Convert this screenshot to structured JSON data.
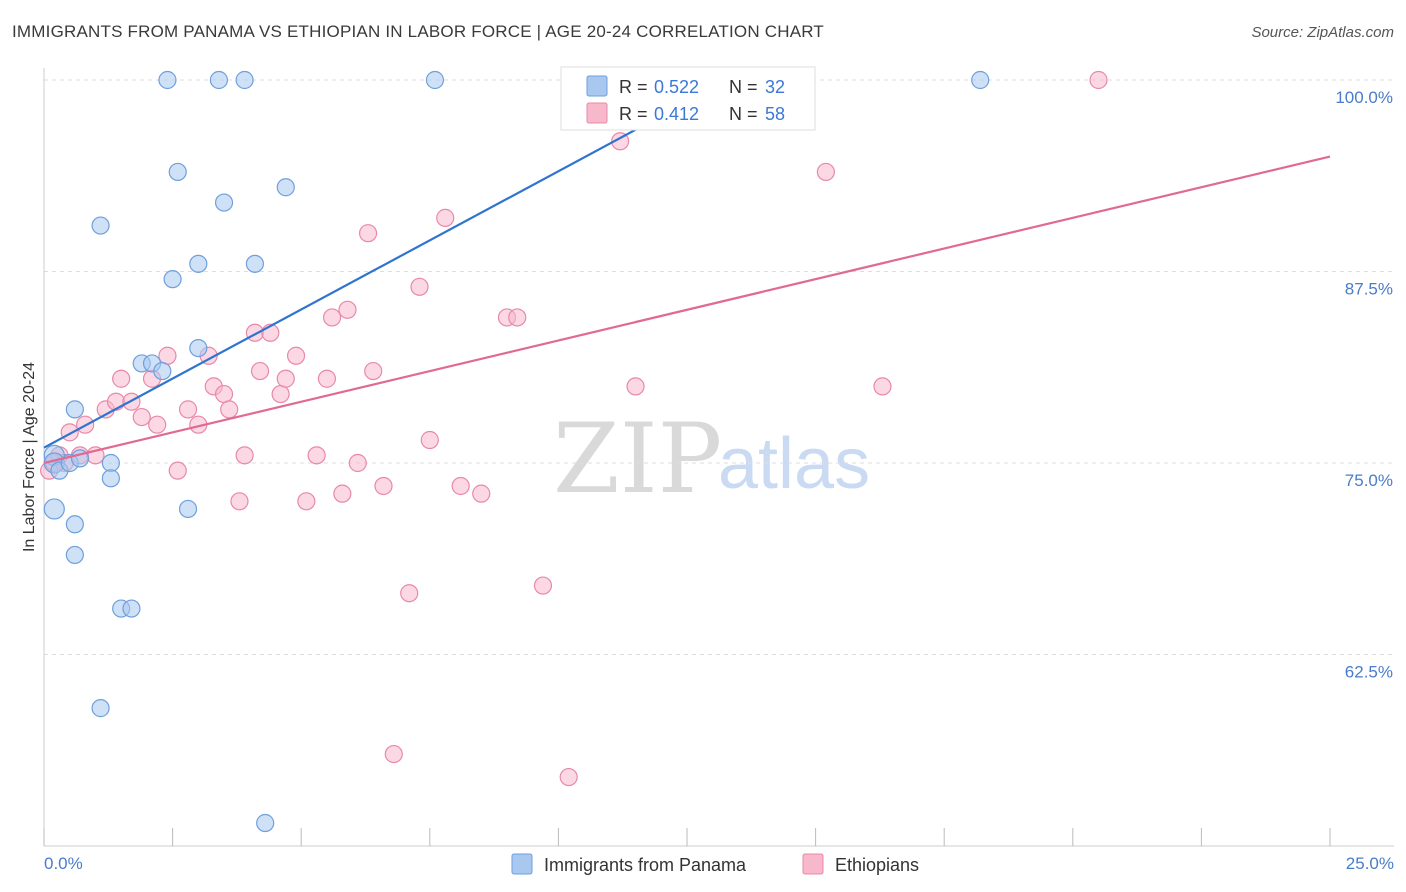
{
  "title": "IMMIGRANTS FROM PANAMA VS ETHIOPIAN IN LABOR FORCE | AGE 20-24 CORRELATION CHART",
  "source": "Source: ZipAtlas.com",
  "watermark": {
    "part1": "ZIP",
    "part2": "atlas"
  },
  "legend": {
    "r_label": "R =",
    "n_label": "N =",
    "rows": [
      {
        "r": "0.522",
        "n": "32",
        "color": "#a8c8f0"
      },
      {
        "r": "0.412",
        "n": "58",
        "color": "#f7b8cc"
      }
    ]
  },
  "bottom_legend": [
    {
      "label": "Immigrants from Panama",
      "color": "#a8c8f0"
    },
    {
      "label": "Ethiopians",
      "color": "#f7b8cc"
    }
  ],
  "colors": {
    "blue_fill": "#a8c8f0",
    "blue_line": "#2f74d0",
    "pink_fill": "#f7b8cc",
    "pink_line": "#e06a93"
  },
  "chart_data": {
    "type": "scatter",
    "ylabel": "In Labor Force | Age 20-24",
    "xlim": [
      0,
      25
    ],
    "ylim": [
      50,
      100
    ],
    "x_tick_labels": [
      "0.0%",
      "25.0%"
    ],
    "y_ticks": [
      62.5,
      75.0,
      87.5,
      100.0
    ],
    "y_tick_labels": [
      "62.5%",
      "75.0%",
      "87.5%",
      "100.0%"
    ],
    "grid": true,
    "series": [
      {
        "name": "Immigrants from Panama",
        "points": [
          [
            0.2,
            75.5
          ],
          [
            0.2,
            75.0
          ],
          [
            0.2,
            72.0
          ],
          [
            0.3,
            74.5
          ],
          [
            0.5,
            75.0
          ],
          [
            0.6,
            71.0
          ],
          [
            0.6,
            78.5
          ],
          [
            0.6,
            69.0
          ],
          [
            0.7,
            75.3
          ],
          [
            1.1,
            90.5
          ],
          [
            1.3,
            75.0
          ],
          [
            1.3,
            74.0
          ],
          [
            1.5,
            65.5
          ],
          [
            1.7,
            65.5
          ],
          [
            1.1,
            59.0
          ],
          [
            1.9,
            81.5
          ],
          [
            2.1,
            81.5
          ],
          [
            2.3,
            81.0
          ],
          [
            2.4,
            100.0
          ],
          [
            2.5,
            87.0
          ],
          [
            2.6,
            94.0
          ],
          [
            2.8,
            72.0
          ],
          [
            3.0,
            82.5
          ],
          [
            3.0,
            88.0
          ],
          [
            3.4,
            100.0
          ],
          [
            3.5,
            92.0
          ],
          [
            3.9,
            100.0
          ],
          [
            4.1,
            88.0
          ],
          [
            4.3,
            51.5
          ],
          [
            4.7,
            93.0
          ],
          [
            7.6,
            100.0
          ],
          [
            18.2,
            100.0
          ]
        ],
        "trend": [
          [
            0.0,
            76.0
          ],
          [
            13.3,
            100.0
          ]
        ]
      },
      {
        "name": "Ethiopians",
        "points": [
          [
            0.1,
            74.5
          ],
          [
            0.2,
            75.0
          ],
          [
            0.3,
            75.5
          ],
          [
            0.4,
            75.0
          ],
          [
            0.5,
            77.0
          ],
          [
            0.7,
            75.5
          ],
          [
            0.8,
            77.5
          ],
          [
            1.0,
            75.5
          ],
          [
            1.2,
            78.5
          ],
          [
            1.4,
            79.0
          ],
          [
            1.5,
            80.5
          ],
          [
            1.7,
            79.0
          ],
          [
            1.9,
            78.0
          ],
          [
            2.1,
            80.5
          ],
          [
            2.2,
            77.5
          ],
          [
            2.4,
            82.0
          ],
          [
            2.6,
            74.5
          ],
          [
            2.8,
            78.5
          ],
          [
            3.0,
            77.5
          ],
          [
            3.2,
            82.0
          ],
          [
            3.3,
            80.0
          ],
          [
            3.5,
            79.5
          ],
          [
            3.6,
            78.5
          ],
          [
            3.8,
            72.5
          ],
          [
            3.9,
            75.5
          ],
          [
            4.1,
            83.5
          ],
          [
            4.2,
            81.0
          ],
          [
            4.4,
            83.5
          ],
          [
            4.6,
            79.5
          ],
          [
            4.7,
            80.5
          ],
          [
            4.9,
            82.0
          ],
          [
            5.1,
            72.5
          ],
          [
            5.3,
            75.5
          ],
          [
            5.5,
            80.5
          ],
          [
            5.6,
            84.5
          ],
          [
            5.8,
            73.0
          ],
          [
            5.9,
            85.0
          ],
          [
            6.1,
            75.0
          ],
          [
            6.3,
            90.0
          ],
          [
            6.4,
            81.0
          ],
          [
            6.6,
            73.5
          ],
          [
            6.8,
            56.0
          ],
          [
            7.1,
            66.5
          ],
          [
            7.3,
            86.5
          ],
          [
            7.5,
            76.5
          ],
          [
            7.8,
            91.0
          ],
          [
            8.1,
            73.5
          ],
          [
            8.5,
            73.0
          ],
          [
            9.0,
            84.5
          ],
          [
            9.2,
            84.5
          ],
          [
            9.7,
            67.0
          ],
          [
            10.2,
            54.5
          ],
          [
            11.2,
            96.0
          ],
          [
            11.5,
            80.0
          ],
          [
            14.3,
            100.0
          ],
          [
            15.2,
            94.0
          ],
          [
            16.3,
            80.0
          ],
          [
            20.5,
            100.0
          ]
        ],
        "trend": [
          [
            0.0,
            75.0
          ],
          [
            25.0,
            95.0
          ]
        ]
      }
    ]
  }
}
